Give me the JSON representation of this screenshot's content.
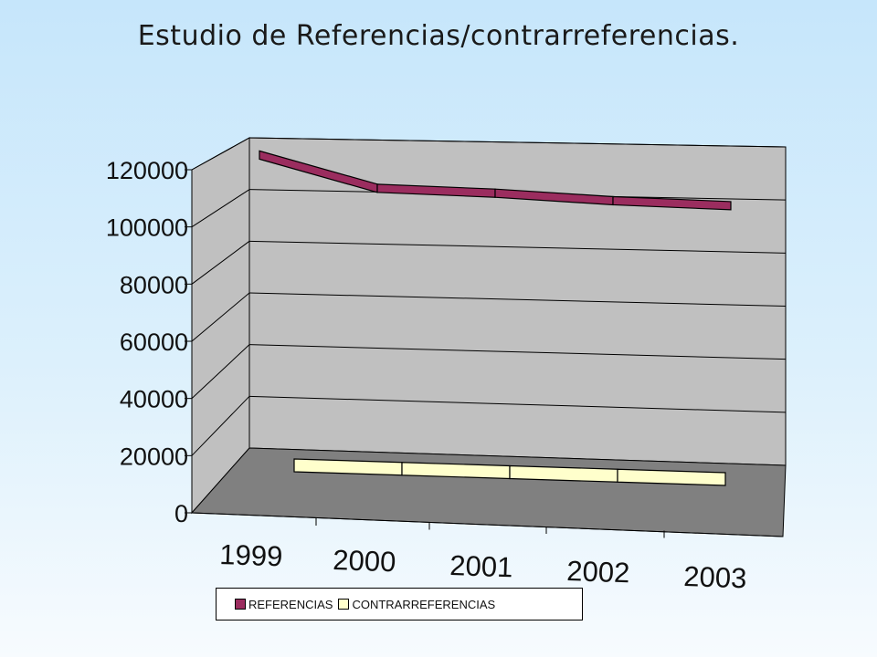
{
  "chart_data": {
    "type": "line",
    "style": "3d-ribbon",
    "title": "Estudio de Referencias/contrarreferencias.",
    "categories": [
      "1999",
      "2000",
      "2001",
      "2002",
      "2003"
    ],
    "series": [
      {
        "name": "REFERENCIAS",
        "values": [
          115000,
          103000,
          102000,
          100000,
          99000
        ],
        "color": "#9b2d5f"
      },
      {
        "name": "CONTRARREFERENCIAS",
        "values": [
          8000,
          8000,
          8000,
          8000,
          8000
        ],
        "color": "#ffffcc"
      }
    ],
    "y_ticks": [
      "0",
      "20000",
      "40000",
      "60000",
      "80000",
      "100000",
      "120000"
    ],
    "ylim": [
      0,
      120000
    ],
    "xlabel": "",
    "ylabel": "",
    "grid": true,
    "legend_position": "bottom",
    "colors": {
      "wall": "#c0c0c0",
      "floor": "#808080",
      "grid": "#000000"
    }
  }
}
